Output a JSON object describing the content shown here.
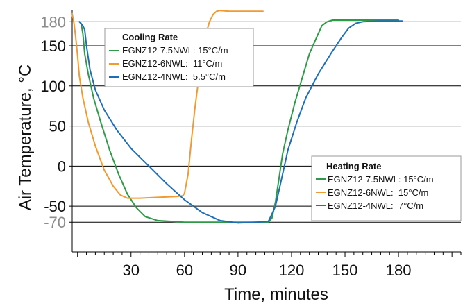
{
  "chart_data": {
    "type": "line",
    "xlabel": "Time, minutes",
    "ylabel": "Air Temperature, °C",
    "xlim": [
      -3,
      215
    ],
    "ylim": [
      -107,
      195
    ],
    "x_ticks": [
      30,
      60,
      90,
      120,
      150,
      180
    ],
    "y_ticks": [
      {
        "value": 180,
        "label": "180",
        "color": "grey"
      },
      {
        "value": 150,
        "label": "150",
        "color": "black"
      },
      {
        "value": 100,
        "label": "100",
        "color": "black"
      },
      {
        "value": 50,
        "label": "50",
        "color": "black"
      },
      {
        "value": 0,
        "label": "0",
        "color": "black"
      },
      {
        "value": -50,
        "label": "-50",
        "color": "black"
      },
      {
        "value": -70,
        "label": "-70",
        "color": "grey"
      }
    ],
    "gridlines": [
      180,
      150,
      100,
      50,
      0,
      -50,
      -70
    ],
    "legends": [
      {
        "title": "Cooling Rate",
        "position": "top-left",
        "entries": [
          {
            "series": 0,
            "label": "EGNZ12-7.5NWL: 15°C/m"
          },
          {
            "series": 1,
            "label": "EGNZ12-6NWL:  11°C/m"
          },
          {
            "series": 2,
            "label": "EGNZ12-4NWL:  5.5°C/m"
          }
        ]
      },
      {
        "title": "Heating Rate",
        "position": "bottom-right",
        "entries": [
          {
            "series": 0,
            "label": "EGNZ12-7.5NWL: 15°C/m"
          },
          {
            "series": 1,
            "label": "EGNZ12-6NWL:  15°C/m"
          },
          {
            "series": 2,
            "label": "EGNZ12-4NWL:  7°C/m"
          }
        ]
      }
    ],
    "series": [
      {
        "name": "EGNZ12-7.5NWL",
        "color": "#2e9a48",
        "x": [
          1,
          2,
          3,
          4,
          6,
          9,
          13,
          18,
          23,
          28,
          33,
          38,
          45,
          60,
          80,
          95,
          107,
          109,
          111,
          113,
          115,
          118,
          122,
          126,
          130,
          134,
          137,
          140,
          143,
          148,
          160,
          170,
          180
        ],
        "y": [
          180,
          178,
          165,
          140,
          115,
          85,
          55,
          20,
          -10,
          -35,
          -52,
          -63,
          -68,
          -70,
          -70,
          -70,
          -70,
          -65,
          -45,
          -15,
          15,
          45,
          80,
          110,
          140,
          160,
          175,
          180,
          182,
          182,
          182,
          182,
          182
        ]
      },
      {
        "name": "EGNZ12-6NWL",
        "color": "#f09a30",
        "x": [
          -3,
          -2,
          -1,
          0,
          1,
          3,
          6,
          10,
          15,
          20,
          24,
          28,
          35,
          45,
          55,
          59,
          60,
          62,
          64,
          66,
          68,
          70,
          72,
          74,
          76,
          78,
          80,
          85,
          95,
          104
        ],
        "y": [
          190,
          178,
          160,
          138,
          112,
          85,
          55,
          25,
          -5,
          -25,
          -36,
          -40,
          -40,
          -39,
          -38,
          -37,
          -34,
          -10,
          35,
          75,
          110,
          140,
          165,
          180,
          189,
          193,
          194,
          193,
          193,
          193
        ]
      },
      {
        "name": "EGNZ12-4NWL",
        "color": "#1f6eb5",
        "x": [
          1,
          3,
          4,
          5,
          7,
          10,
          15,
          22,
          30,
          40,
          50,
          60,
          70,
          80,
          90,
          100,
          107,
          109,
          111,
          114,
          118,
          123,
          128,
          135,
          142,
          148,
          152,
          156,
          160,
          170,
          182
        ],
        "y": [
          180,
          175,
          170,
          150,
          120,
          95,
          70,
          45,
          22,
          0,
          -22,
          -42,
          -58,
          -68,
          -71,
          -70,
          -69,
          -60,
          -50,
          -20,
          20,
          55,
          85,
          115,
          140,
          160,
          172,
          178,
          180,
          181,
          181
        ]
      }
    ]
  }
}
